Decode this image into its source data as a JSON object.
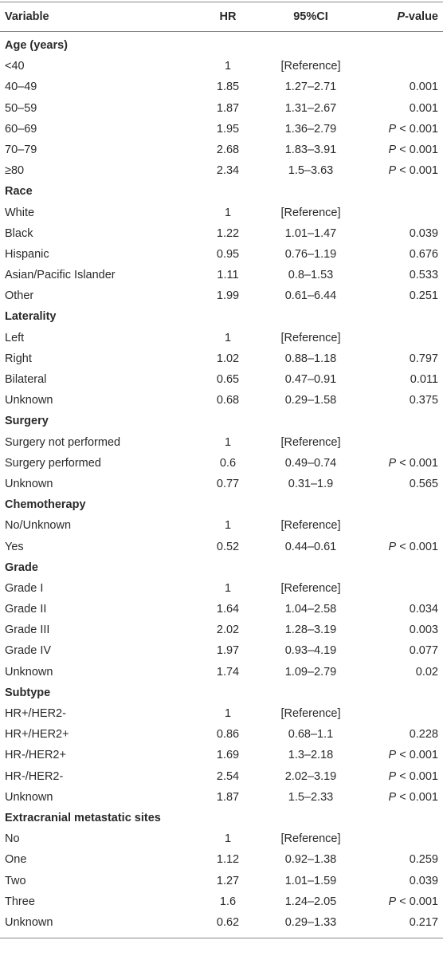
{
  "table": {
    "columns": [
      "Variable",
      "HR",
      "95%CI",
      "P-value"
    ],
    "sections": [
      {
        "title": "Age (years)",
        "rows": [
          [
            "<40",
            1,
            "[Reference]",
            null
          ],
          [
            "40–49",
            1.85,
            "1.27–2.71",
            0.001
          ],
          [
            "50–59",
            1.87,
            "1.31–2.67",
            0.001
          ],
          [
            "60–69",
            1.95,
            "1.36–2.79",
            "P < 0.001"
          ],
          [
            "70–79",
            2.68,
            "1.83–3.91",
            "P < 0.001"
          ],
          [
            "≥80",
            2.34,
            "1.5–3.63",
            "P < 0.001"
          ]
        ]
      },
      {
        "title": "Race",
        "rows": [
          [
            "White",
            1,
            "[Reference]",
            null
          ],
          [
            "Black",
            1.22,
            "1.01–1.47",
            0.039
          ],
          [
            "Hispanic",
            0.95,
            "0.76–1.19",
            0.676
          ],
          [
            "Asian/Pacific Islander",
            1.11,
            "0.8–1.53",
            0.533
          ],
          [
            "Other",
            1.99,
            "0.61–6.44",
            0.251
          ]
        ]
      },
      {
        "title": "Laterality",
        "rows": [
          [
            "Left",
            1,
            "[Reference]",
            null
          ],
          [
            "Right",
            1.02,
            "0.88–1.18",
            0.797
          ],
          [
            "Bilateral",
            0.65,
            "0.47–0.91",
            0.011
          ],
          [
            "Unknown",
            0.68,
            "0.29–1.58",
            0.375
          ]
        ]
      },
      {
        "title": "Surgery",
        "rows": [
          [
            "Surgery not performed",
            1,
            "[Reference]",
            null
          ],
          [
            "Surgery performed",
            0.6,
            "0.49–0.74",
            "P < 0.001"
          ],
          [
            "Unknown",
            0.77,
            "0.31–1.9",
            0.565
          ]
        ]
      },
      {
        "title": "Chemotherapy",
        "rows": [
          [
            "No/Unknown",
            1,
            "[Reference]",
            null
          ],
          [
            "Yes",
            0.52,
            "0.44–0.61",
            "P < 0.001"
          ]
        ]
      },
      {
        "title": "Grade",
        "rows": [
          [
            "Grade I",
            1,
            "[Reference]",
            null
          ],
          [
            "Grade II",
            1.64,
            "1.04–2.58",
            0.034
          ],
          [
            "Grade III",
            2.02,
            "1.28–3.19",
            0.003
          ],
          [
            "Grade IV",
            1.97,
            "0.93–4.19",
            0.077
          ],
          [
            "Unknown",
            1.74,
            "1.09–2.79",
            0.02
          ]
        ]
      },
      {
        "title": "Subtype",
        "rows": [
          [
            "HR+/HER2-",
            1,
            "[Reference]",
            null
          ],
          [
            "HR+/HER2+",
            0.86,
            "0.68–1.1",
            0.228
          ],
          [
            "HR-/HER2+",
            1.69,
            "1.3–2.18",
            "P < 0.001"
          ],
          [
            "HR-/HER2-",
            2.54,
            "2.02–3.19",
            "P < 0.001"
          ],
          [
            "Unknown",
            1.87,
            "1.5–2.33",
            "P < 0.001"
          ]
        ]
      },
      {
        "title": "Extracranial metastatic sites",
        "rows": [
          [
            "No",
            1,
            "[Reference]",
            null
          ],
          [
            "One",
            1.12,
            "0.92–1.38",
            0.259
          ],
          [
            "Two",
            1.27,
            "1.01–1.59",
            0.039
          ],
          [
            "Three",
            1.6,
            "1.24–2.05",
            "P < 0.001"
          ],
          [
            "Unknown",
            0.62,
            "0.29–1.33",
            0.217
          ]
        ]
      }
    ]
  }
}
